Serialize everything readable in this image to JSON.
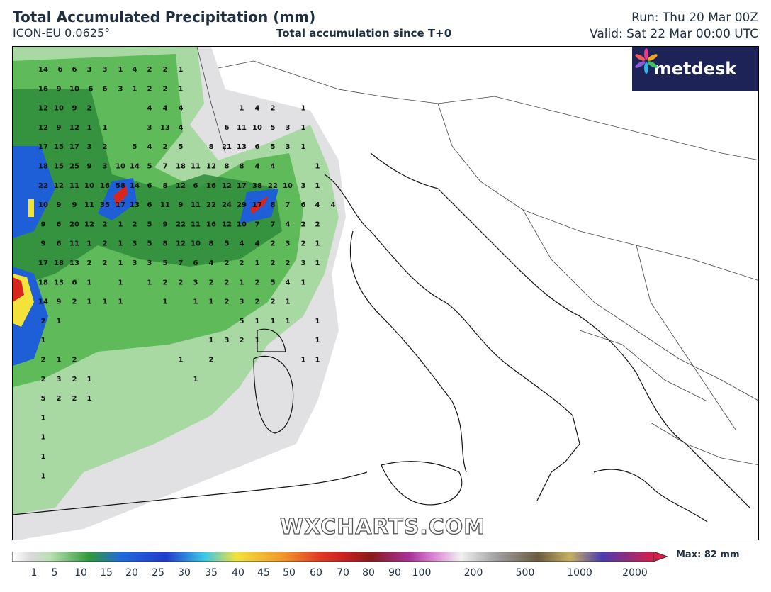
{
  "header": {
    "title": "Total Accumulated Precipitation (mm)",
    "model": "ICON-EU 0.0625°",
    "subtitle": "Total accumulation since T+0",
    "run": "Run: Thu 20 Mar 00Z",
    "valid": "Valid: Sat 22 Mar 00:00 UTC"
  },
  "logo": {
    "text": "metdesk",
    "icon": "metdesk-flower-icon"
  },
  "watermark": "WXCHARTS.COM",
  "colorbar": {
    "ticks": [
      "1",
      "5",
      "10",
      "15",
      "20",
      "25",
      "30",
      "35",
      "40",
      "45",
      "50",
      "60",
      "70",
      "80",
      "90",
      "100",
      "200",
      "500",
      "1000",
      "2000"
    ],
    "max_label": "Max: 82 mm"
  },
  "map_labels": {
    "rows": [
      [
        "14",
        "6",
        "6",
        "3",
        "3",
        "1",
        "4",
        "2",
        "2",
        "1"
      ],
      [
        "16",
        "9",
        "10",
        "6",
        "6",
        "3",
        "1",
        "2",
        "2",
        "1"
      ],
      [
        "12",
        "10",
        "9",
        "2",
        "4",
        "4",
        "4",
        "1",
        "4",
        "2",
        "1"
      ],
      [
        "12",
        "9",
        "12",
        "1",
        "1",
        "3",
        "13",
        "4",
        "6",
        "11",
        "10",
        "5",
        "3",
        "1"
      ],
      [
        "17",
        "15",
        "17",
        "3",
        "2",
        "5",
        "4",
        "2",
        "5",
        "8",
        "21",
        "13",
        "6",
        "5",
        "3",
        "1"
      ],
      [
        "18",
        "15",
        "25",
        "9",
        "3",
        "10",
        "14",
        "5",
        "7",
        "18",
        "11",
        "12",
        "8",
        "8",
        "4",
        "4",
        "1"
      ],
      [
        "22",
        "12",
        "11",
        "10",
        "16",
        "58",
        "14",
        "6",
        "8",
        "12",
        "6",
        "16",
        "12",
        "17",
        "38",
        "22",
        "10",
        "3",
        "1"
      ],
      [
        "10",
        "9",
        "9",
        "11",
        "35",
        "17",
        "13",
        "6",
        "11",
        "9",
        "11",
        "22",
        "24",
        "29",
        "17",
        "8",
        "7",
        "6",
        "4",
        "4"
      ],
      [
        "9",
        "6",
        "20",
        "12",
        "2",
        "1",
        "2",
        "5",
        "9",
        "22",
        "11",
        "16",
        "12",
        "10",
        "7",
        "7",
        "4",
        "2",
        "2"
      ],
      [
        "9",
        "6",
        "11",
        "1",
        "2",
        "1",
        "3",
        "5",
        "8",
        "12",
        "10",
        "8",
        "5",
        "4",
        "4",
        "2",
        "3",
        "2",
        "1"
      ],
      [
        "17",
        "18",
        "13",
        "2",
        "2",
        "1",
        "3",
        "3",
        "5",
        "7",
        "6",
        "4",
        "2",
        "2",
        "1",
        "2",
        "2",
        "3",
        "1"
      ],
      [
        "18",
        "13",
        "6",
        "1",
        "1",
        "1",
        "2",
        "2",
        "3",
        "2",
        "2",
        "1",
        "2",
        "5",
        "4",
        "1"
      ],
      [
        "14",
        "9",
        "2",
        "1",
        "1",
        "1",
        "1",
        "1",
        "1",
        "2",
        "3",
        "2",
        "2",
        "1"
      ],
      [
        "2",
        "1",
        "5",
        "1",
        "1",
        "1",
        "1"
      ],
      [
        "1",
        "1",
        "3",
        "2",
        "1",
        "1"
      ],
      [
        "2",
        "1",
        "2",
        "1",
        "2",
        "1",
        "1"
      ],
      [
        "2",
        "3",
        "2",
        "1",
        "1"
      ],
      [
        "5",
        "2",
        "2",
        "1"
      ],
      [
        "1"
      ],
      [
        "1"
      ],
      [
        "1"
      ],
      [
        "1"
      ]
    ]
  },
  "colors": {
    "title": "#1f2f40",
    "logo_bg": "#1d2356",
    "green_light": "#a8d9a2",
    "green_mid": "#5fba5a",
    "green_dark": "#2e8b3a",
    "blue": "#1e5fd8",
    "cyan": "#38c8e8",
    "yellow": "#f2e23a",
    "red": "#d8261e",
    "grey": "#c9c9cc"
  }
}
